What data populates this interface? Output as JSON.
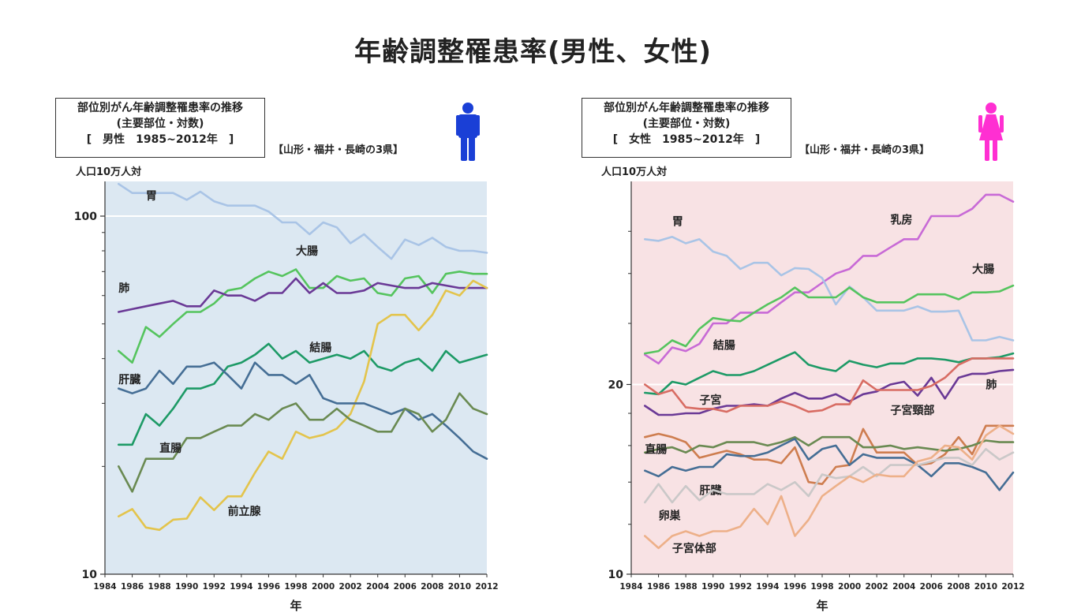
{
  "page": {
    "title": "年齢調整罹患率(男性、女性)"
  },
  "icons": {
    "male": "male-person-icon",
    "female": "female-person-icon"
  },
  "colors": {
    "male_bg": "#dce8f2",
    "female_bg": "#f8e2e4",
    "male_icon": "#1a3fd6",
    "female_icon": "#ff2fd2"
  },
  "chart_data": [
    {
      "type": "line",
      "box_line1": "部位別がん年齢調整罹患率の推移",
      "box_line2": "(主要部位・対数)",
      "box_line3": "[　男性　1985~2012年　]",
      "region": "【山形・福井・長崎の3県】",
      "unit": "人口10万人対",
      "xlabel": "年",
      "yscale": "log",
      "ylim": [
        10,
        125
      ],
      "xlim": [
        1984,
        2012
      ],
      "x_ticks": [
        1984,
        1986,
        1988,
        1990,
        1992,
        1994,
        1996,
        1998,
        2000,
        2002,
        2004,
        2006,
        2008,
        2010,
        2012
      ],
      "y_tick_labels": [
        {
          "v": 10,
          "t": "10"
        },
        {
          "v": 100,
          "t": "100"
        }
      ],
      "minor_ticks": [
        20,
        30,
        40,
        50,
        60,
        70,
        80,
        90
      ],
      "gridline": 100,
      "x": [
        1985,
        1986,
        1987,
        1988,
        1989,
        1990,
        1991,
        1992,
        1993,
        1994,
        1995,
        1996,
        1997,
        1998,
        1999,
        2000,
        2001,
        2002,
        2003,
        2004,
        2005,
        2006,
        2007,
        2008,
        2009,
        2010,
        2011,
        2012
      ],
      "series": [
        {
          "name": "胃",
          "color": "#a9c4e6",
          "label_pos": [
            1987,
            114
          ],
          "values": [
            123,
            116,
            116,
            116,
            116,
            111,
            117,
            110,
            107,
            107,
            107,
            103,
            96,
            96,
            89,
            96,
            93,
            84,
            89,
            82,
            76,
            86,
            83,
            87,
            82,
            80,
            80,
            79
          ]
        },
        {
          "name": "大腸",
          "color": "#55c45e",
          "label_pos": [
            1998,
            80
          ],
          "values": [
            42,
            39,
            49,
            46,
            50,
            54,
            54,
            57,
            62,
            63,
            67,
            70,
            68,
            71,
            63,
            63,
            68,
            66,
            67,
            61,
            60,
            67,
            68,
            61,
            69,
            70,
            69,
            69
          ]
        },
        {
          "name": "肺",
          "color": "#6a3996",
          "label_pos": [
            1985,
            63
          ],
          "values": [
            54,
            55,
            56,
            57,
            58,
            56,
            56,
            62,
            60,
            60,
            58,
            61,
            61,
            67,
            61,
            65,
            61,
            61,
            62,
            65,
            64,
            63,
            63,
            65,
            64,
            63,
            63,
            63
          ]
        },
        {
          "name": "結腸",
          "color": "#1d9a66",
          "label_pos": [
            1999,
            43
          ],
          "values": [
            23,
            23,
            28,
            26,
            29,
            33,
            33,
            34,
            38,
            39,
            41,
            44,
            40,
            42,
            39,
            40,
            41,
            40,
            42,
            38,
            37,
            39,
            40,
            37,
            42,
            39,
            40,
            41
          ]
        },
        {
          "name": "前立腺",
          "color": "#e3c44c",
          "label_pos": [
            1993,
            15
          ],
          "values": [
            14.5,
            15.2,
            13.5,
            13.3,
            14.2,
            14.3,
            16.4,
            15.1,
            16.5,
            16.5,
            19.2,
            22,
            21,
            25,
            24,
            24.5,
            25.5,
            28,
            34.5,
            50,
            53,
            53,
            48,
            53,
            62,
            60,
            66,
            63
          ]
        },
        {
          "name": "肝臓",
          "color": "#456e95",
          "label_pos": [
            1985,
            35
          ],
          "values": [
            33,
            32,
            33,
            37,
            34,
            38,
            38,
            39,
            36,
            33,
            39,
            36,
            36,
            34,
            36,
            31,
            30,
            30,
            30,
            29,
            28,
            29,
            27,
            28,
            26,
            24,
            22,
            21
          ]
        },
        {
          "name": "直腸",
          "color": "#6a8a52",
          "label_pos": [
            1988,
            22.5
          ],
          "values": [
            20,
            17,
            21,
            21,
            21,
            24,
            24,
            25,
            26,
            26,
            28,
            27,
            29,
            30,
            27,
            27,
            29,
            27,
            26,
            25,
            25,
            29,
            28,
            25,
            27,
            32,
            29,
            28
          ]
        }
      ]
    },
    {
      "type": "line",
      "box_line1": "部位別がん年齢調整罹患率の推移",
      "box_line2": "(主要部位・対数)",
      "box_line3": "[　女性　1985~2012年　]",
      "region": "【山形・福井・長崎の3県】",
      "unit": "人口10万人対",
      "xlabel": "年",
      "yscale": "log",
      "ylim": [
        10,
        42
      ],
      "xlim": [
        1984,
        2012
      ],
      "x_ticks": [
        1984,
        1986,
        1988,
        1990,
        1992,
        1994,
        1996,
        1998,
        2000,
        2002,
        2004,
        2006,
        2008,
        2010,
        2012
      ],
      "y_tick_labels": [
        {
          "v": 10,
          "t": "10"
        },
        {
          "v": 20,
          "t": "20"
        }
      ],
      "minor_ticks": [
        12,
        14,
        16,
        18,
        25,
        30,
        35
      ],
      "gridline": 20,
      "x": [
        1985,
        1986,
        1987,
        1988,
        1989,
        1990,
        1991,
        1992,
        1993,
        1994,
        1995,
        1996,
        1997,
        1998,
        1999,
        2000,
        2001,
        2002,
        2003,
        2004,
        2005,
        2006,
        2007,
        2008,
        2009,
        2010,
        2011,
        2012
      ],
      "series": [
        {
          "name": "乳房",
          "color": "#c86ad6",
          "label_pos": [
            2003,
            36.5
          ],
          "values": [
            22.3,
            21.6,
            22.9,
            22.6,
            23.2,
            25,
            25,
            26,
            26,
            26,
            27,
            28,
            28,
            29,
            30,
            30.5,
            32,
            32,
            33,
            34,
            34,
            37,
            37,
            37,
            38,
            40,
            40,
            39
          ]
        },
        {
          "name": "胃",
          "color": "#a9c4e6",
          "label_pos": [
            1987,
            36.3
          ],
          "values": [
            34,
            33.8,
            34.3,
            33.5,
            34,
            32.5,
            32,
            30.5,
            31.2,
            31.2,
            29.8,
            30.6,
            30.5,
            29.5,
            26.8,
            28.6,
            27.5,
            26.2,
            26.2,
            26.2,
            26.6,
            26.1,
            26.1,
            26.2,
            23.5,
            23.5,
            23.8,
            23.5
          ]
        },
        {
          "name": "大腸",
          "color": "#55c45e",
          "label_pos": [
            2009,
            30.5
          ],
          "values": [
            22.4,
            22.6,
            23.5,
            23,
            24.5,
            25.5,
            25.3,
            25.2,
            26,
            26.8,
            27.5,
            28.5,
            27.5,
            27.5,
            27.5,
            28.5,
            27.5,
            27,
            27,
            27,
            27.8,
            27.8,
            27.8,
            27.3,
            28,
            28,
            28.1,
            28.7
          ]
        },
        {
          "name": "結腸",
          "color": "#1d9a66",
          "label_pos": [
            1990,
            23.1
          ],
          "values": [
            19.4,
            19.3,
            20.2,
            20,
            20.5,
            21,
            20.7,
            20.7,
            21,
            21.5,
            22,
            22.5,
            21.5,
            21.2,
            21,
            21.8,
            21.5,
            21.3,
            21.6,
            21.6,
            22,
            22,
            21.9,
            21.7,
            22,
            22,
            22.1,
            22.4
          ]
        },
        {
          "name": "肺",
          "color": "#6a3996",
          "label_pos": [
            2010,
            20
          ],
          "values": [
            18.5,
            17.9,
            17.9,
            18,
            18,
            18.3,
            18.5,
            18.5,
            18.6,
            18.5,
            19,
            19.4,
            19,
            19,
            19.3,
            18.8,
            19.3,
            19.5,
            20,
            20.2,
            19.2,
            20.5,
            19,
            20.5,
            20.8,
            20.8,
            21,
            21.1
          ]
        },
        {
          "name": "子宮",
          "color": "#d86c63",
          "label_pos": [
            1989,
            18.9
          ],
          "values": [
            20,
            19.3,
            19.6,
            18.4,
            18.3,
            18.3,
            18.1,
            18.5,
            18.5,
            18.5,
            18.8,
            18.5,
            18.1,
            18.2,
            18.6,
            18.6,
            20.3,
            19.6,
            19.6,
            19.6,
            19.6,
            19.9,
            20.5,
            21.5,
            22,
            22,
            22,
            22
          ]
        },
        {
          "name": "子宮頸部",
          "color": "#ce7d4f",
          "label_pos": [
            2003,
            18.2
          ],
          "values": [
            16.5,
            16.7,
            16.5,
            16.2,
            15.3,
            15.5,
            15.7,
            15.5,
            15.2,
            15.2,
            15,
            15.9,
            14,
            13.9,
            14.8,
            14.9,
            17,
            15.6,
            15.6,
            15.6,
            14.9,
            15,
            15.5,
            16.5,
            15.5,
            17.2,
            17.2,
            17.2
          ]
        },
        {
          "name": "直腸",
          "color": "#6a8a52",
          "label_pos": [
            1985,
            15.8
          ],
          "values": [
            15.6,
            15.8,
            15.9,
            15.6,
            16,
            15.9,
            16.2,
            16.2,
            16.2,
            16,
            16.2,
            16.5,
            16,
            16.5,
            16.5,
            16.5,
            15.9,
            15.9,
            16,
            15.8,
            15.9,
            15.8,
            15.7,
            15.8,
            16,
            16.3,
            16.2,
            16.2
          ]
        },
        {
          "name": "肝臓",
          "color": "#456e95",
          "label_pos": [
            1989,
            13.6
          ],
          "values": [
            14.6,
            14.3,
            14.8,
            14.6,
            14.8,
            14.8,
            15.5,
            15.4,
            15.4,
            15.6,
            16,
            16.4,
            15.2,
            15.8,
            16,
            14.9,
            15.5,
            15.3,
            15.3,
            15.3,
            14.9,
            14.3,
            15,
            15,
            14.8,
            14.5,
            13.6,
            14.5
          ]
        },
        {
          "name": "卵巣",
          "color": "#cac8c8",
          "label_pos": [
            1986,
            12.4
          ],
          "values": [
            13,
            13.9,
            13,
            13.8,
            13.1,
            13.6,
            13.4,
            13.4,
            13.4,
            13.9,
            13.6,
            14,
            13.3,
            14.4,
            14.2,
            14.3,
            14.8,
            14.3,
            14.9,
            14.9,
            14.9,
            15.1,
            15.3,
            15.3,
            14.9,
            15.8,
            15.2,
            15.6
          ]
        },
        {
          "name": "子宮体部",
          "color": "#edb089",
          "label_pos": [
            1987,
            11
          ],
          "values": [
            11.5,
            11,
            11.5,
            11.7,
            11.5,
            11.7,
            11.7,
            11.9,
            12.7,
            12,
            13.3,
            11.5,
            12.2,
            13.3,
            13.8,
            14.3,
            14,
            14.4,
            14.3,
            14.3,
            15.1,
            15.3,
            16,
            15.9,
            15.2,
            16.6,
            17.2,
            16.7
          ]
        }
      ]
    }
  ]
}
